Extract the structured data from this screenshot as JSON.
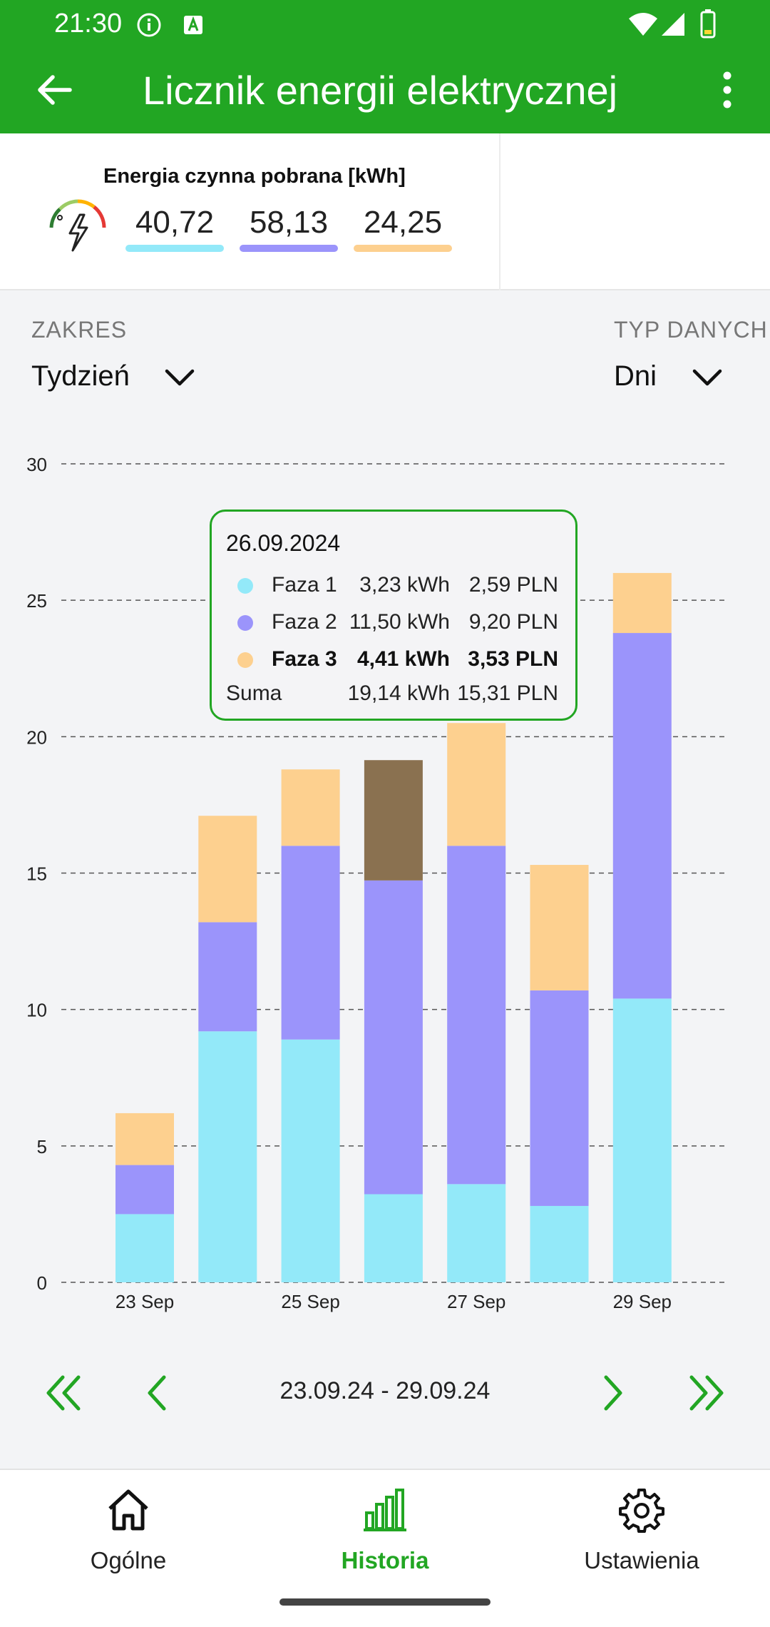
{
  "status_bar": {
    "time": "21:30"
  },
  "app_bar": {
    "title": "Licznik energii elektrycznej"
  },
  "summary": {
    "label": "Energia czynna pobrana [kWh]",
    "values": [
      {
        "value": "40,72",
        "color": "#93e9f9"
      },
      {
        "value": "58,13",
        "color": "#9b94fb"
      },
      {
        "value": "24,25",
        "color": "#fdd08f"
      }
    ]
  },
  "range": {
    "label": "ZAKRES",
    "value": "Tydzień"
  },
  "data_type": {
    "label": "TYP DANYCH",
    "value": "Dni"
  },
  "tooltip": {
    "date": "26.09.2024",
    "rows": [
      {
        "name": "Faza 1",
        "kwh": "3,23 kWh",
        "pln": "2,59 PLN",
        "color": "#93e9f9"
      },
      {
        "name": "Faza 2",
        "kwh": "11,50 kWh",
        "pln": "9,20 PLN",
        "color": "#9b94fb"
      },
      {
        "name": "Faza 3",
        "kwh": "4,41 kWh",
        "pln": "3,53 PLN",
        "color": "#fdd08f"
      }
    ],
    "sum": {
      "name": "Suma",
      "kwh": "19,14 kWh",
      "pln": "15,31 PLN"
    }
  },
  "chart_data": {
    "type": "bar",
    "stacked": true,
    "categories": [
      "23 Sep",
      "24 Sep",
      "25 Sep",
      "26 Sep",
      "27 Sep",
      "28 Sep",
      "29 Sep"
    ],
    "tick_labels": [
      "23 Sep",
      "",
      "25 Sep",
      "",
      "27 Sep",
      "",
      "29 Sep"
    ],
    "series": [
      {
        "name": "Faza 1",
        "color": "#93e9f9",
        "values": [
          2.5,
          9.2,
          8.9,
          3.23,
          3.6,
          2.8,
          10.4
        ]
      },
      {
        "name": "Faza 2",
        "color": "#9b94fb",
        "values": [
          1.8,
          4.0,
          7.1,
          11.5,
          12.4,
          7.9,
          13.4
        ]
      },
      {
        "name": "Faza 3",
        "color": "#fdd08f",
        "values": [
          1.9,
          3.9,
          2.8,
          4.41,
          4.5,
          4.6,
          2.2
        ]
      }
    ],
    "highlight": {
      "category": "26 Sep",
      "series": "Faza 3",
      "color": "#8a7150"
    },
    "ylim": [
      0,
      30
    ],
    "yticks": [
      0,
      5,
      10,
      15,
      20,
      25,
      30
    ],
    "grid": true
  },
  "pager": {
    "range": "23.09.24 - 29.09.24"
  },
  "bottom_nav": {
    "items": [
      {
        "label": "Ogólne"
      },
      {
        "label": "Historia"
      },
      {
        "label": "Ustawienia"
      }
    ]
  },
  "colors": {
    "accent": "#22a623"
  }
}
